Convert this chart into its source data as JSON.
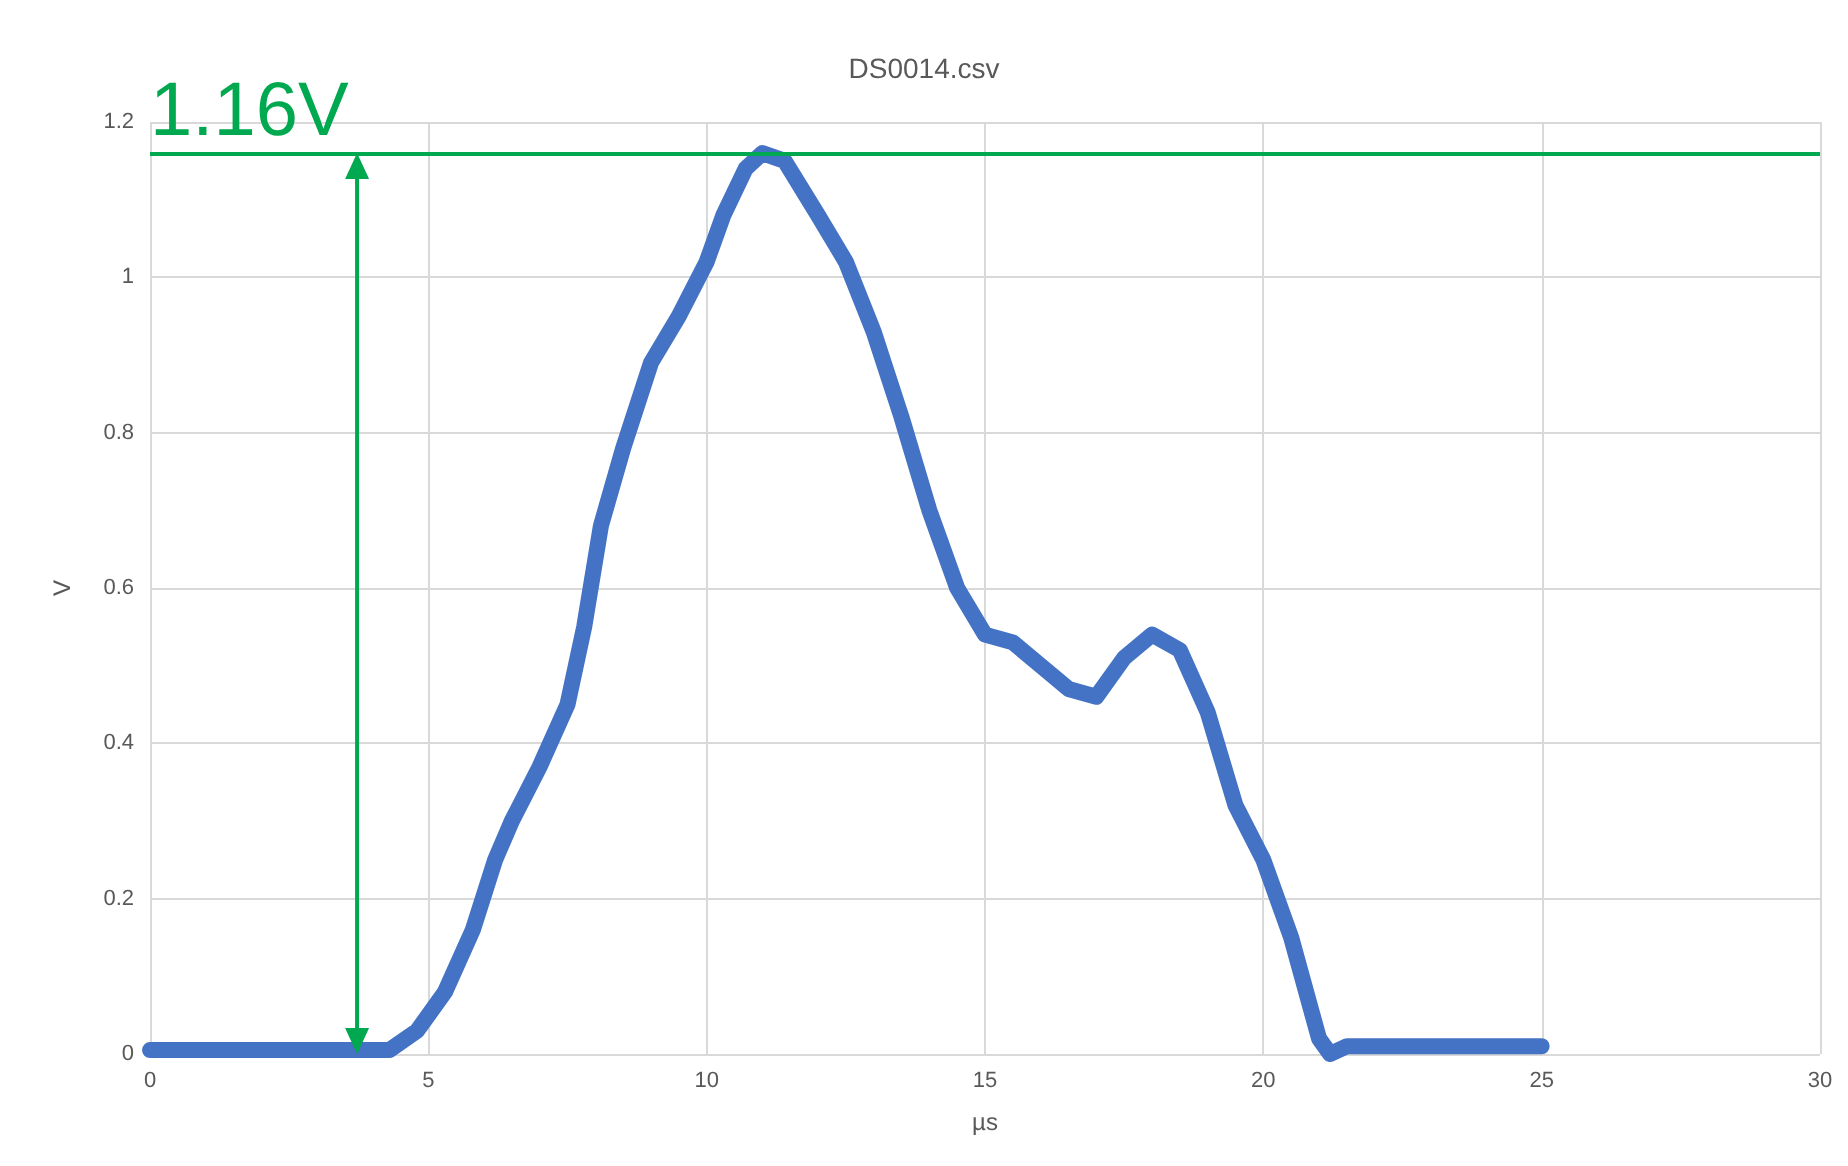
{
  "chart_data": {
    "type": "line",
    "title": "DS0014.csv",
    "xlabel": "µs",
    "ylabel": "V",
    "xlim": [
      0,
      30
    ],
    "xticks": [
      0,
      5,
      10,
      15,
      20,
      25,
      30
    ],
    "ylim": [
      0,
      1.2
    ],
    "yticks": [
      0,
      0.2,
      0.4,
      0.6,
      0.8,
      1,
      1.2
    ],
    "grid": true,
    "marker": "none",
    "line_style": "solid",
    "series": [
      {
        "color": "#4472c4",
        "x": [
          0,
          4.3,
          4.8,
          5.3,
          5.8,
          6.2,
          6.5,
          7,
          7.5,
          7.8,
          8.1,
          8.5,
          9,
          9.5,
          10,
          10.3,
          10.7,
          11,
          11.4,
          12,
          12.5,
          13,
          13.5,
          14,
          14.5,
          15,
          15.5,
          16,
          16.5,
          17,
          17.5,
          18,
          18.5,
          19,
          19.5,
          20,
          20.5,
          21,
          21.2,
          21.5,
          25
        ],
        "values": [
          0.005,
          0.005,
          0.03,
          0.08,
          0.16,
          0.25,
          0.3,
          0.37,
          0.45,
          0.55,
          0.68,
          0.78,
          0.89,
          0.95,
          1.02,
          1.08,
          1.14,
          1.16,
          1.15,
          1.08,
          1.02,
          0.93,
          0.82,
          0.7,
          0.6,
          0.54,
          0.53,
          0.5,
          0.47,
          0.46,
          0.51,
          0.54,
          0.52,
          0.44,
          0.32,
          0.25,
          0.15,
          0.02,
          0,
          0.01,
          0.01
        ]
      }
    ],
    "ref_lines": [
      {
        "axis": "y",
        "value": 1.16,
        "label": "1.16V",
        "color": "#00a84f",
        "line_style": "solid"
      }
    ]
  }
}
